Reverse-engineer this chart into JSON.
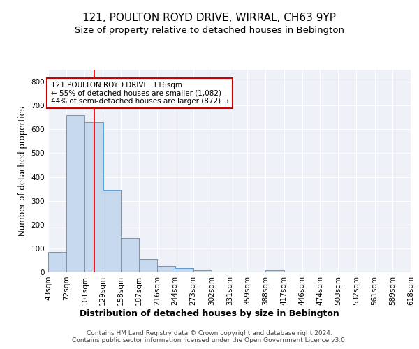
{
  "title": "121, POULTON ROYD DRIVE, WIRRAL, CH63 9YP",
  "subtitle": "Size of property relative to detached houses in Bebington",
  "xlabel": "Distribution of detached houses by size in Bebington",
  "ylabel": "Number of detached properties",
  "bar_left_edges": [
    43,
    72,
    101,
    129,
    158,
    187,
    216,
    244,
    273,
    302,
    331,
    359,
    388,
    417,
    446,
    474,
    503,
    532,
    561,
    589
  ],
  "bar_heights": [
    85,
    660,
    630,
    345,
    145,
    55,
    25,
    18,
    10,
    0,
    0,
    0,
    8,
    0,
    0,
    0,
    0,
    0,
    0,
    0
  ],
  "bin_width": 29,
  "tick_labels": [
    "43sqm",
    "72sqm",
    "101sqm",
    "129sqm",
    "158sqm",
    "187sqm",
    "216sqm",
    "244sqm",
    "273sqm",
    "302sqm",
    "331sqm",
    "359sqm",
    "388sqm",
    "417sqm",
    "446sqm",
    "474sqm",
    "503sqm",
    "532sqm",
    "561sqm",
    "589sqm",
    "618sqm"
  ],
  "bar_color": "#c5d8ed",
  "bar_edge_color": "#5b9bd5",
  "background_color": "#eef2f8",
  "grid_color": "#ffffff",
  "red_line_x": 116,
  "annotation_text": "121 POULTON ROYD DRIVE: 116sqm\n← 55% of detached houses are smaller (1,082)\n44% of semi-detached houses are larger (872) →",
  "annotation_box_color": "#ffffff",
  "annotation_box_edge": "#cc0000",
  "ylim": [
    0,
    850
  ],
  "yticks": [
    0,
    100,
    200,
    300,
    400,
    500,
    600,
    700,
    800
  ],
  "footer_text": "Contains HM Land Registry data © Crown copyright and database right 2024.\nContains public sector information licensed under the Open Government Licence v3.0.",
  "title_fontsize": 11,
  "subtitle_fontsize": 9.5,
  "xlabel_fontsize": 9,
  "ylabel_fontsize": 8.5,
  "tick_fontsize": 7.5,
  "footer_fontsize": 6.5,
  "annot_fontsize": 7.5
}
